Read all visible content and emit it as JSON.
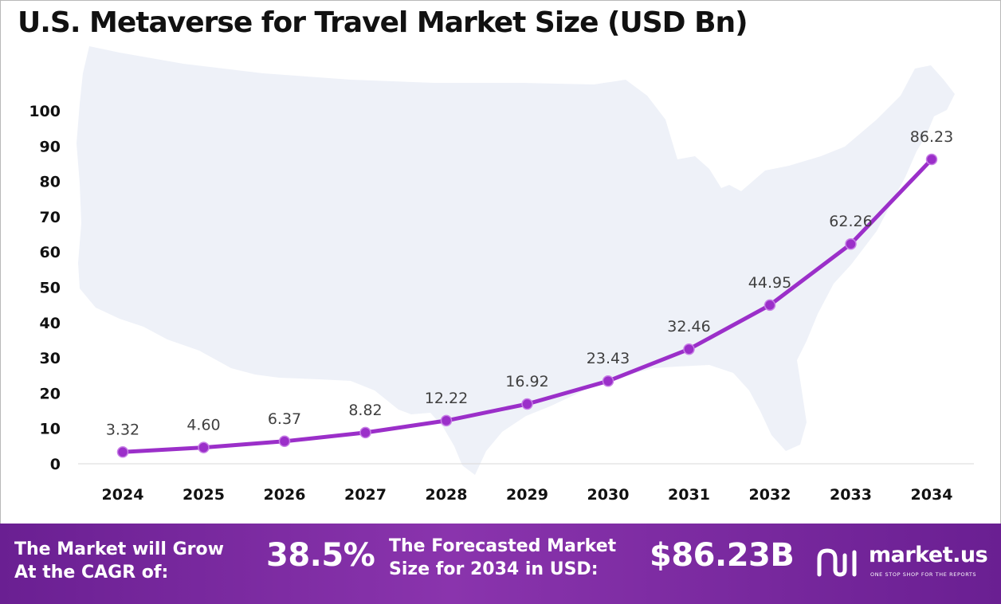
{
  "chart_data": {
    "type": "line",
    "title": "U.S. Metaverse for Travel Market Size (USD Bn)",
    "categories": [
      "2024",
      "2025",
      "2026",
      "2027",
      "2028",
      "2029",
      "2030",
      "2031",
      "2032",
      "2033",
      "2034"
    ],
    "values": [
      3.32,
      4.6,
      6.37,
      8.82,
      12.22,
      16.92,
      23.43,
      32.46,
      44.95,
      62.26,
      86.23
    ],
    "value_labels": [
      "3.32",
      "4.60",
      "6.37",
      "8.82",
      "12.22",
      "16.92",
      "23.43",
      "32.46",
      "44.95",
      "62.26",
      "86.23"
    ],
    "yticks": [
      0,
      10,
      20,
      30,
      40,
      50,
      60,
      70,
      80,
      90,
      100
    ],
    "ylim": [
      0,
      100
    ],
    "grid": false,
    "legend": "none",
    "line_color": "#9b2fc9",
    "background_map": "united-states-map"
  },
  "footer": {
    "cagr_label_line1": "The Market will Grow",
    "cagr_label_line2": "At the CAGR of:",
    "cagr_value": "38.5%",
    "forecast_label_line1": "The Forecasted Market",
    "forecast_label_line2": "Size for 2034 in USD:",
    "forecast_value": "$86.23B",
    "brand_name": "market.us",
    "brand_tagline": "ONE STOP SHOP FOR THE REPORTS",
    "background_color": "#7a2aa0"
  }
}
